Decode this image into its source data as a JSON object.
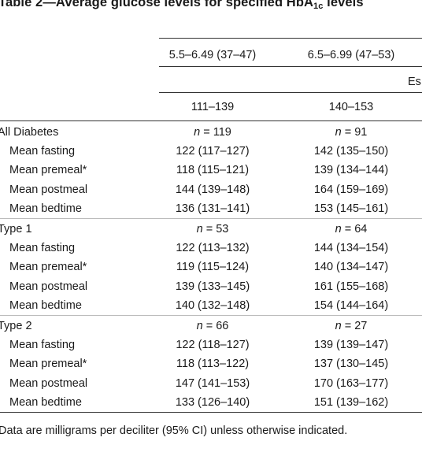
{
  "table": {
    "title_prefix": "Table 2—Average glucose levels for specified HbA",
    "title_sub": "1c",
    "title_suffix": " levels",
    "header": {
      "col1_range": "5.5–6.49 (37–47)",
      "col2_range": "6.5–6.99 (47–53)",
      "estimate_label_partial": "Es",
      "col1_estimate": "111–139",
      "col2_estimate": "140–153"
    },
    "groups": [
      {
        "label": "All Diabetes",
        "n1": "119",
        "n2": "91",
        "rows": [
          {
            "label": "Mean fasting",
            "v1": "122 (117–127)",
            "v2": "142 (135–150)"
          },
          {
            "label": "Mean premeal*",
            "v1": "118 (115–121)",
            "v2": "139 (134–144)"
          },
          {
            "label": "Mean postmeal",
            "v1": "144 (139–148)",
            "v2": "164 (159–169)"
          },
          {
            "label": "Mean bedtime",
            "v1": "136 (131–141)",
            "v2": "153 (145–161)"
          }
        ]
      },
      {
        "label": "Type 1",
        "n1": "53",
        "n2": "64",
        "rows": [
          {
            "label": "Mean fasting",
            "v1": "122 (113–132)",
            "v2": "144 (134–154)"
          },
          {
            "label": "Mean premeal*",
            "v1": "119 (115–124)",
            "v2": "140 (134–147)"
          },
          {
            "label": "Mean postmeal",
            "v1": "139 (133–145)",
            "v2": "161 (155–168)"
          },
          {
            "label": "Mean bedtime",
            "v1": "140 (132–148)",
            "v2": "154 (144–164)"
          }
        ]
      },
      {
        "label": "Type 2",
        "n1": "66",
        "n2": "27",
        "rows": [
          {
            "label": "Mean fasting",
            "v1": "122 (118–127)",
            "v2": "139 (139–147)"
          },
          {
            "label": "Mean premeal*",
            "v1": "118 (113–122)",
            "v2": "137 (130–145)"
          },
          {
            "label": "Mean postmeal",
            "v1": "147 (141–153)",
            "v2": "170 (163–177)"
          },
          {
            "label": "Mean bedtime",
            "v1": "133 (126–140)",
            "v2": "151 (139–162)"
          }
        ]
      }
    ],
    "n_prefix": "n",
    "n_equals": " = ",
    "footnote": "Data are milligrams per deciliter (95% CI) unless otherwise indicated."
  }
}
